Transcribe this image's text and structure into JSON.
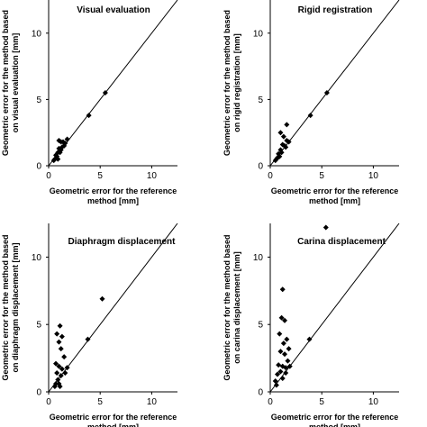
{
  "chart_data": [
    {
      "type": "scatter",
      "title": "Visual evaluation",
      "xlabel": [
        "Geometric error for the reference",
        "method [mm]"
      ],
      "ylabel": [
        "Geometric error for the method based",
        "on visual evaluation [mm]"
      ],
      "xlim": [
        0,
        12.5
      ],
      "ylim": [
        0,
        12.5
      ],
      "xticks": [
        "0",
        "5",
        "10"
      ],
      "yticks": [
        "0",
        "5",
        "10"
      ],
      "identity_line": true,
      "grid": false,
      "points": [
        [
          5.5,
          5.5
        ],
        [
          3.9,
          3.8
        ],
        [
          1.0,
          1.9
        ],
        [
          1.2,
          1.8
        ],
        [
          1.4,
          1.8
        ],
        [
          1.8,
          2.0
        ],
        [
          1.5,
          1.5
        ],
        [
          1.0,
          1.3
        ],
        [
          1.2,
          1.2
        ],
        [
          0.9,
          1.0
        ],
        [
          1.1,
          1.0
        ],
        [
          0.7,
          0.8
        ],
        [
          0.8,
          0.7
        ],
        [
          0.9,
          0.5
        ],
        [
          1.3,
          1.4
        ],
        [
          1.6,
          1.7
        ],
        [
          0.6,
          0.5
        ],
        [
          0.5,
          0.4
        ]
      ]
    },
    {
      "type": "scatter",
      "title": "Rigid registration",
      "xlabel": [
        "Geometric error for the reference",
        "method [mm]"
      ],
      "ylabel": [
        "Geometric error for the method based",
        "on rigid registration [mm]"
      ],
      "xlim": [
        0,
        12.5
      ],
      "ylim": [
        0,
        12.5
      ],
      "xticks": [
        "0",
        "5",
        "10"
      ],
      "yticks": [
        "0",
        "5",
        "10"
      ],
      "identity_line": true,
      "grid": false,
      "points": [
        [
          5.5,
          5.5
        ],
        [
          3.9,
          3.8
        ],
        [
          1.6,
          3.1
        ],
        [
          1.0,
          2.5
        ],
        [
          1.3,
          2.2
        ],
        [
          1.6,
          1.9
        ],
        [
          1.2,
          1.6
        ],
        [
          1.4,
          1.5
        ],
        [
          1.0,
          1.2
        ],
        [
          1.1,
          1.0
        ],
        [
          0.8,
          0.9
        ],
        [
          0.9,
          0.7
        ],
        [
          0.7,
          0.6
        ],
        [
          0.6,
          0.5
        ],
        [
          0.5,
          0.4
        ],
        [
          1.5,
          1.4
        ],
        [
          1.8,
          1.8
        ]
      ]
    },
    {
      "type": "scatter",
      "title": "Diaphragm displacement",
      "xlabel": [
        "Geometric error for the reference",
        "method [mm]"
      ],
      "ylabel": [
        "Geometric error for the method based",
        "on diaphragm displacement [mm]"
      ],
      "xlim": [
        0,
        12.5
      ],
      "ylim": [
        0,
        12.5
      ],
      "xticks": [
        "0",
        "5",
        "10"
      ],
      "yticks": [
        "0",
        "5",
        "10"
      ],
      "identity_line": true,
      "grid": false,
      "points": [
        [
          5.2,
          6.9
        ],
        [
          3.8,
          3.9
        ],
        [
          1.1,
          4.9
        ],
        [
          0.8,
          4.3
        ],
        [
          1.3,
          4.1
        ],
        [
          1.0,
          3.7
        ],
        [
          1.2,
          3.2
        ],
        [
          1.5,
          2.6
        ],
        [
          0.7,
          2.1
        ],
        [
          1.0,
          1.9
        ],
        [
          1.3,
          1.7
        ],
        [
          1.8,
          1.8
        ],
        [
          0.8,
          1.4
        ],
        [
          1.2,
          1.2
        ],
        [
          1.6,
          1.4
        ],
        [
          0.9,
          0.9
        ],
        [
          0.7,
          0.6
        ],
        [
          1.0,
          0.6
        ],
        [
          0.6,
          0.4
        ],
        [
          1.1,
          0.4
        ]
      ]
    },
    {
      "type": "scatter",
      "title": "Carina displacement",
      "xlabel": [
        "Geometric error for the reference",
        "method [mm]"
      ],
      "ylabel": [
        "Geometric error for the method based",
        "on carina displacement [mm]"
      ],
      "xlim": [
        0,
        12.5
      ],
      "ylim": [
        0,
        12.5
      ],
      "xticks": [
        "0",
        "5",
        "10"
      ],
      "yticks": [
        "0",
        "5",
        "10"
      ],
      "identity_line": true,
      "grid": false,
      "points": [
        [
          5.4,
          12.2
        ],
        [
          1.2,
          7.6
        ],
        [
          1.1,
          5.5
        ],
        [
          1.4,
          5.3
        ],
        [
          0.9,
          4.3
        ],
        [
          1.6,
          3.9
        ],
        [
          1.3,
          3.6
        ],
        [
          1.8,
          3.2
        ],
        [
          1.0,
          3.0
        ],
        [
          1.4,
          2.8
        ],
        [
          3.8,
          3.9
        ],
        [
          1.7,
          2.3
        ],
        [
          0.8,
          2.0
        ],
        [
          1.2,
          1.9
        ],
        [
          1.5,
          1.8
        ],
        [
          1.9,
          1.9
        ],
        [
          0.7,
          1.3
        ],
        [
          1.0,
          1.5
        ],
        [
          1.2,
          1.0
        ],
        [
          0.5,
          0.8
        ],
        [
          0.6,
          0.5
        ],
        [
          1.5,
          1.4
        ]
      ]
    }
  ]
}
